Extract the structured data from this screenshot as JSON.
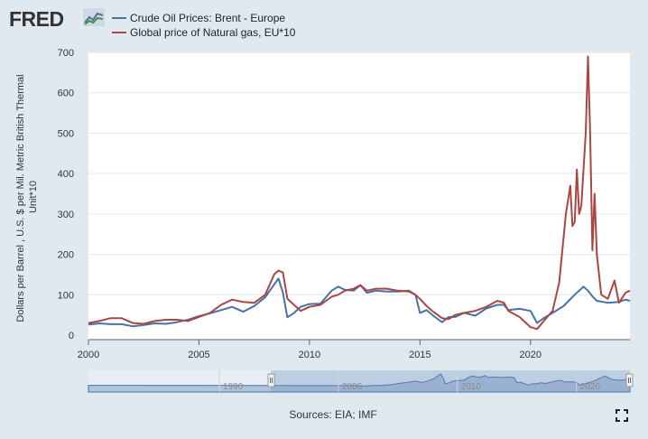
{
  "logo": {
    "text": "FRED",
    "icon": "fred-chart-icon"
  },
  "footer": {
    "source": "Sources: EIA; IMF",
    "fullscreen_icon": "fullscreen-icon"
  },
  "colors": {
    "oil": "#4572a7",
    "gas": "#aa4643",
    "plot_bg": "#ffffff",
    "page_bg": "#e1e9f0",
    "navigator_fill": "#8ea8c9"
  },
  "chart_data": {
    "type": "line",
    "title": "",
    "ylabel": "Dollars per Barrel , U.S. $ per Mil. Metric British Thermal Unit*10",
    "xlabel": "",
    "xlim": [
      2000,
      2024.5
    ],
    "ylim": [
      0,
      700
    ],
    "x_ticks": [
      "2000",
      "2005",
      "2010",
      "2015",
      "2020"
    ],
    "y_ticks": [
      "0",
      "100",
      "200",
      "300",
      "400",
      "500",
      "600",
      "700"
    ],
    "navigator_ticks": [
      "1990",
      "2000",
      "2010",
      "2020"
    ],
    "series": [
      {
        "name": "Crude Oil Prices: Brent - Europe",
        "color": "#4572a7",
        "x": [
          2000,
          2000.5,
          2001,
          2001.5,
          2002,
          2002.5,
          2003,
          2003.5,
          2004,
          2004.5,
          2005,
          2005.5,
          2006,
          2006.5,
          2007,
          2007.5,
          2008,
          2008.4,
          2008.6,
          2008.8,
          2009,
          2009.3,
          2009.6,
          2010,
          2010.5,
          2011,
          2011.3,
          2011.6,
          2012,
          2012.3,
          2012.6,
          2013,
          2013.5,
          2014,
          2014.5,
          2014.8,
          2015,
          2015.3,
          2015.6,
          2016,
          2016.3,
          2016.6,
          2017,
          2017.5,
          2018,
          2018.5,
          2018.8,
          2019,
          2019.5,
          2020,
          2020.3,
          2020.6,
          2021,
          2021.5,
          2022,
          2022.4,
          2022.6,
          2022.8,
          2023,
          2023.5,
          2024,
          2024.3,
          2024.5
        ],
        "values": [
          26,
          29,
          27,
          27,
          22,
          25,
          29,
          28,
          32,
          38,
          47,
          54,
          62,
          70,
          58,
          72,
          94,
          125,
          140,
          105,
          44,
          55,
          70,
          77,
          78,
          110,
          120,
          112,
          110,
          124,
          105,
          110,
          108,
          108,
          110,
          100,
          55,
          62,
          48,
          32,
          45,
          45,
          55,
          48,
          66,
          75,
          75,
          62,
          65,
          60,
          30,
          42,
          55,
          72,
          100,
          120,
          110,
          96,
          85,
          80,
          82,
          88,
          85
        ]
      },
      {
        "name": "Global price of Natural gas, EU*10",
        "color": "#aa4643",
        "x": [
          2000,
          2000.5,
          2001,
          2001.5,
          2002,
          2002.5,
          2003,
          2003.5,
          2004,
          2004.5,
          2005,
          2005.5,
          2006,
          2006.5,
          2007,
          2007.5,
          2008,
          2008.4,
          2008.6,
          2008.8,
          2009,
          2009.3,
          2009.6,
          2010,
          2010.5,
          2011,
          2011.3,
          2011.6,
          2012,
          2012.3,
          2012.6,
          2013,
          2013.5,
          2014,
          2014.5,
          2014.8,
          2015,
          2015.3,
          2015.6,
          2016,
          2016.3,
          2016.6,
          2017,
          2017.5,
          2018,
          2018.5,
          2018.8,
          2019,
          2019.5,
          2020,
          2020.3,
          2020.6,
          2021,
          2021.3,
          2021.6,
          2021.8,
          2021.9,
          2022,
          2022.1,
          2022.2,
          2022.3,
          2022.5,
          2022.6,
          2022.7,
          2022.8,
          2022.9,
          2023,
          2023.2,
          2023.5,
          2023.8,
          2024,
          2024.3,
          2024.5
        ],
        "values": [
          30,
          35,
          42,
          42,
          30,
          28,
          35,
          38,
          38,
          35,
          45,
          55,
          75,
          88,
          82,
          80,
          100,
          150,
          160,
          155,
          90,
          75,
          60,
          70,
          75,
          95,
          100,
          110,
          115,
          124,
          110,
          115,
          115,
          110,
          108,
          100,
          90,
          72,
          58,
          42,
          40,
          50,
          55,
          60,
          70,
          85,
          80,
          60,
          45,
          20,
          15,
          35,
          60,
          130,
          300,
          370,
          270,
          280,
          410,
          300,
          320,
          500,
          690,
          500,
          210,
          350,
          200,
          100,
          90,
          135,
          80,
          105,
          110
        ]
      }
    ]
  }
}
